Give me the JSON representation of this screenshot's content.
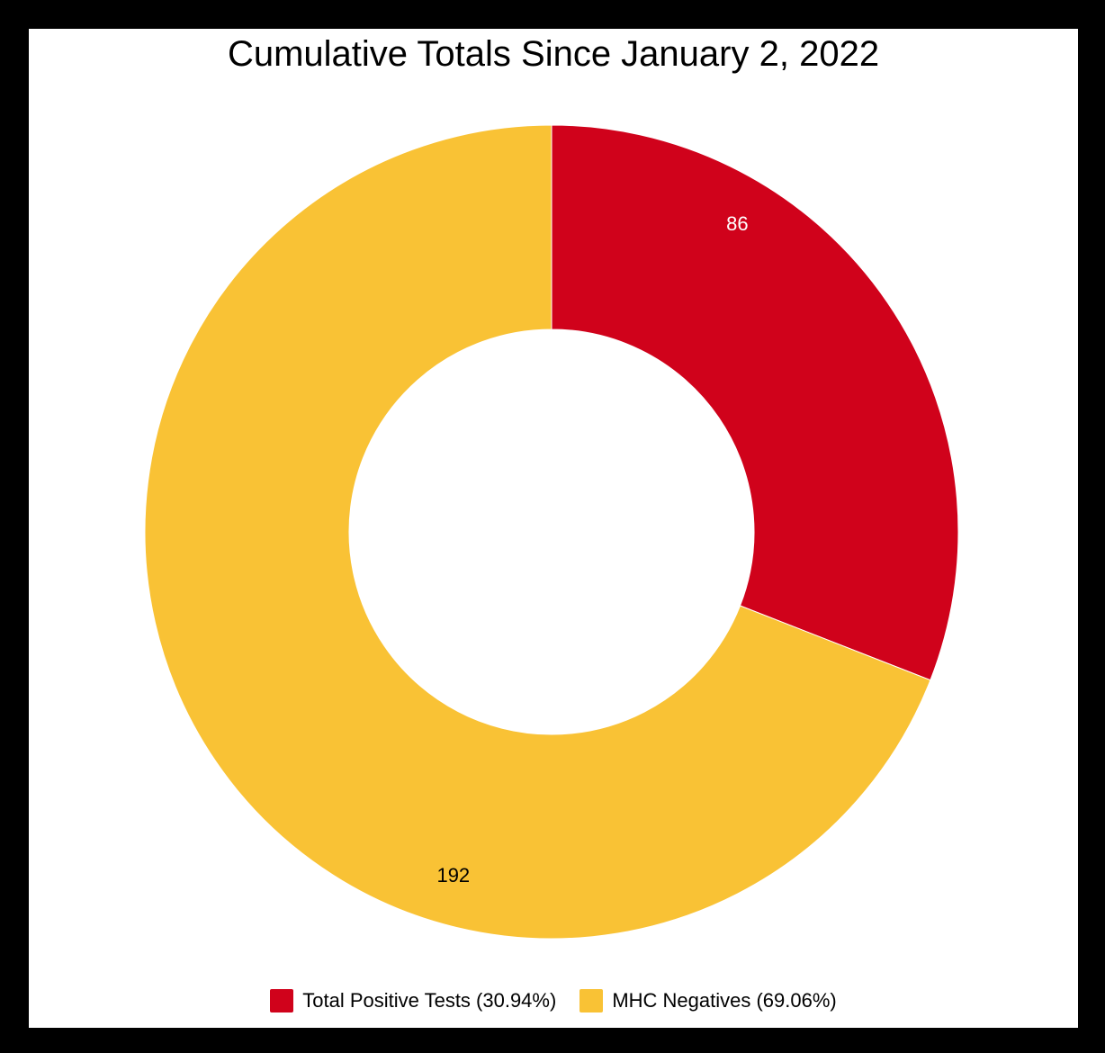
{
  "chart_data": {
    "type": "pie",
    "title": "Cumulative Totals Since January 2, 2022",
    "donut": true,
    "slices": [
      {
        "label": "Total Positive Tests (30.94%)",
        "value": 86,
        "color": "#d0021b",
        "label_color": "#ffffff"
      },
      {
        "label": "MHC Negatives (69.06%)",
        "value": 192,
        "color": "#f9c235",
        "label_color": "#000000"
      }
    ],
    "legend": "bottom"
  }
}
